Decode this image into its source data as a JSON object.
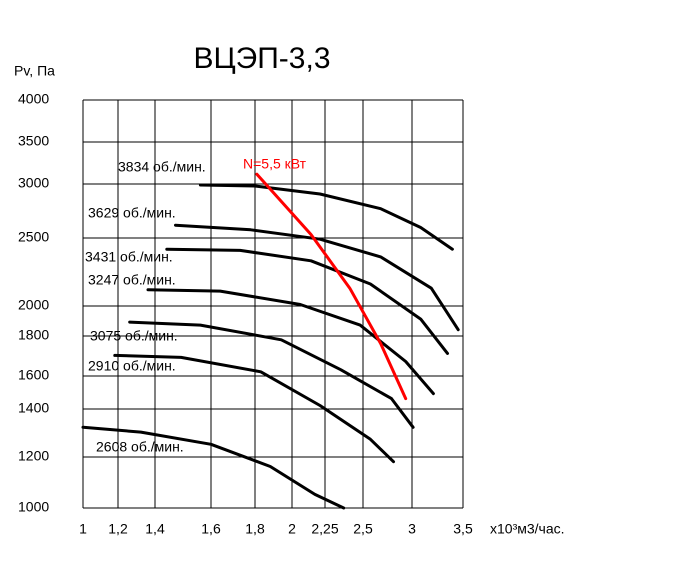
{
  "chart_data": {
    "type": "line",
    "title": "ВЦЭП-3,3",
    "ylabel": "Pv, Па",
    "xlabel": "x10³м3/час.",
    "xscale": "log",
    "yscale": "log",
    "grid": true,
    "xlim": [
      1,
      3.5
    ],
    "ylim": [
      1000,
      4000
    ],
    "xticks": [
      1,
      {
        "value": 1.2,
        "label": "1,2"
      },
      {
        "value": 1.4,
        "label": "1,4"
      },
      {
        "value": 1.6,
        "label": "1,6"
      },
      {
        "value": 1.8,
        "label": "1,8"
      },
      2,
      {
        "value": 2.25,
        "label": "2,25"
      },
      {
        "value": 2.5,
        "label": "2,5"
      },
      3,
      {
        "value": 3.5,
        "label": "3,5"
      }
    ],
    "yticks": [
      1000,
      1200,
      1400,
      1600,
      1800,
      2000,
      2500,
      3000,
      3500,
      4000
    ],
    "series": [
      {
        "name": "3834 об./мин.",
        "color": "#000000",
        "x": [
          1.56,
          1.8,
          2.21,
          2.67,
          3.08,
          3.39
        ],
        "values": [
          2990,
          2980,
          2900,
          2760,
          2590,
          2410
        ]
      },
      {
        "name": "3629 об./мин.",
        "color": "#000000",
        "x": [
          1.47,
          1.78,
          2.21,
          2.67,
          3.18,
          3.45
        ],
        "values": [
          2610,
          2570,
          2490,
          2350,
          2120,
          1840
        ]
      },
      {
        "name": "3431 об./мин.",
        "color": "#000000",
        "x": [
          1.44,
          1.73,
          2.14,
          2.57,
          3.08,
          3.34
        ],
        "values": [
          2410,
          2400,
          2320,
          2150,
          1910,
          1710
        ]
      },
      {
        "name": "3247 об./мин.",
        "color": "#000000",
        "x": [
          1.36,
          1.64,
          2.06,
          2.48,
          2.93,
          3.2
        ],
        "values": [
          2110,
          2100,
          2010,
          1870,
          1670,
          1490
        ]
      },
      {
        "name": "3075 об./мин.",
        "color": "#000000",
        "x": [
          1.26,
          1.56,
          1.94,
          2.35,
          2.78,
          3.01
        ],
        "values": [
          1890,
          1870,
          1780,
          1630,
          1460,
          1320
        ]
      },
      {
        "name": "2910 об./мин.",
        "color": "#000000",
        "x": [
          1.18,
          1.49,
          1.83,
          2.21,
          2.57,
          2.8
        ],
        "values": [
          1700,
          1690,
          1620,
          1420,
          1270,
          1180
        ]
      },
      {
        "name": "2608 об./мин.",
        "color": "#000000",
        "x": [
          1.0,
          1.32,
          1.6,
          1.88,
          2.17,
          2.37
        ],
        "values": [
          1320,
          1300,
          1250,
          1160,
          1050,
          1000
        ]
      },
      {
        "name": "N=5,5 кВт",
        "color": "#ff0000",
        "x": [
          1.81,
          2.14,
          2.41,
          2.67,
          2.93
        ],
        "values": [
          3110,
          2530,
          2120,
          1760,
          1460
        ]
      }
    ]
  }
}
